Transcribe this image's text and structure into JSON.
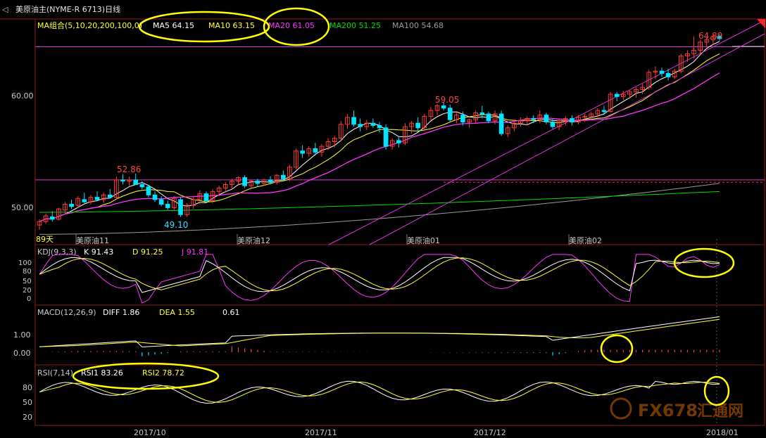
{
  "title_bar": {
    "icon": "back-arrow-icon",
    "text": "美原油主(NYME-R 6713)日线"
  },
  "colors": {
    "bg": "#000000",
    "frame": "#8b1a1a",
    "up": "#ff3b3b",
    "down": "#00e5ff",
    "ma5": "#ffffff",
    "ma10": "#ffff33",
    "ma20": "#ff33ff",
    "ma200": "#00dd00",
    "ma100": "#9a9a9a",
    "trend": "#dd33dd",
    "hline": "#dd33dd",
    "dashed": "#ff3333",
    "label_red": "#ff4444",
    "label_cyan": "#33e0ff",
    "highlight": "#ffff00",
    "axis_text": "#c8c8c8",
    "dateline": "#8b1a1a"
  },
  "main": {
    "legend": {
      "ma_group": "MA组合(5,10,20,200,100,0)",
      "ma5": "MA5 64.15",
      "ma10": "MA10 63.15",
      "ma20": "MA20 61.05",
      "ma200": "MA200 51.25",
      "ma100": "MA100 54.68"
    },
    "y_ticks": [
      "60.00",
      "50.00"
    ],
    "month_labels": [
      "美原油11",
      "美原油12",
      "美原油01",
      "美原油02"
    ],
    "annotations": {
      "high_label": "52.86",
      "low_label": "49.10",
      "mid_high_label": "59.05",
      "last_high_label": "64.89"
    },
    "days_label": "89天"
  },
  "kdj": {
    "name": "KDJ(9,3,3)",
    "k": "K  91.43",
    "d": "D  91.25",
    "j": "J  91.81",
    "y_ticks": [
      "100",
      "80",
      "50",
      "20",
      "0"
    ]
  },
  "macd": {
    "name": "MACD(12,26,9)",
    "diff": "DIFF  1.86",
    "dea": "DEA  1.55",
    "hist": "0.61",
    "y_ticks": [
      "1.00",
      "0.00"
    ]
  },
  "rsi": {
    "name": "RSI(7,14)",
    "rsi1": "RSI1  83.26",
    "rsi2": "RSI2  78.72",
    "y_ticks": [
      "80",
      "50",
      "20"
    ]
  },
  "x_axis": {
    "labels": [
      "2017/10",
      "2017/11",
      "2017/12",
      "2018/01"
    ]
  },
  "watermark": {
    "text": "FX678",
    "cn": "汇通网"
  },
  "chart_data": {
    "type": "candlestick",
    "ylim": [
      47.8,
      66.2
    ],
    "candles_ohlc": [
      [
        48.4,
        48.9,
        48.0,
        48.7
      ],
      [
        48.7,
        49.4,
        48.5,
        49.2
      ],
      [
        49.1,
        49.6,
        48.7,
        48.9
      ],
      [
        48.9,
        49.9,
        48.8,
        49.8
      ],
      [
        49.7,
        50.4,
        49.4,
        50.2
      ],
      [
        50.2,
        50.6,
        49.8,
        50.0
      ],
      [
        50.1,
        50.9,
        49.9,
        50.7
      ],
      [
        50.6,
        51.2,
        50.3,
        50.4
      ],
      [
        50.4,
        51.0,
        50.2,
        50.8
      ],
      [
        50.8,
        51.3,
        50.5,
        50.6
      ],
      [
        50.6,
        51.2,
        50.3,
        51.0
      ],
      [
        51.0,
        51.5,
        50.7,
        50.8
      ],
      [
        50.8,
        52.6,
        50.6,
        52.3
      ],
      [
        52.3,
        52.8,
        51.9,
        52.2
      ],
      [
        52.2,
        52.6,
        51.8,
        52.3
      ],
      [
        52.3,
        52.86,
        51.9,
        51.9
      ],
      [
        51.9,
        52.2,
        51.5,
        51.7
      ],
      [
        51.7,
        51.9,
        50.8,
        51.0
      ],
      [
        51.0,
        51.3,
        50.4,
        50.6
      ],
      [
        50.6,
        50.9,
        50.0,
        50.2
      ],
      [
        50.2,
        50.5,
        49.7,
        49.9
      ],
      [
        49.9,
        50.9,
        49.6,
        50.7
      ],
      [
        50.6,
        50.8,
        49.1,
        49.3
      ],
      [
        49.3,
        50.3,
        49.1,
        50.1
      ],
      [
        50.1,
        50.8,
        49.8,
        50.6
      ],
      [
        50.6,
        51.4,
        50.2,
        51.1
      ],
      [
        51.1,
        51.3,
        50.3,
        50.5
      ],
      [
        50.5,
        51.5,
        50.3,
        51.3
      ],
      [
        51.3,
        51.8,
        50.9,
        51.6
      ],
      [
        51.6,
        52.1,
        51.2,
        51.9
      ],
      [
        51.9,
        52.4,
        51.6,
        52.2
      ],
      [
        52.2,
        52.6,
        51.8,
        52.5
      ],
      [
        52.5,
        52.7,
        51.6,
        51.8
      ],
      [
        51.8,
        52.3,
        51.5,
        52.2
      ],
      [
        52.2,
        52.4,
        51.7,
        52.0
      ],
      [
        52.0,
        52.4,
        51.8,
        52.3
      ],
      [
        52.3,
        52.6,
        51.9,
        52.1
      ],
      [
        52.1,
        52.8,
        51.9,
        52.7
      ],
      [
        52.7,
        53.1,
        52.2,
        52.4
      ],
      [
        52.4,
        53.6,
        52.2,
        53.4
      ],
      [
        53.4,
        55.0,
        53.2,
        54.8
      ],
      [
        54.8,
        55.3,
        54.2,
        54.6
      ],
      [
        54.6,
        55.2,
        54.3,
        55.0
      ],
      [
        55.0,
        55.5,
        54.4,
        54.7
      ],
      [
        54.7,
        55.4,
        54.3,
        55.2
      ],
      [
        55.2,
        55.9,
        54.9,
        55.6
      ],
      [
        55.6,
        56.1,
        55.1,
        55.9
      ],
      [
        55.9,
        57.4,
        55.7,
        57.1
      ],
      [
        57.1,
        58.0,
        56.7,
        57.7
      ],
      [
        57.7,
        58.3,
        56.9,
        57.1
      ],
      [
        57.1,
        57.6,
        56.5,
        56.9
      ],
      [
        56.9,
        57.5,
        56.6,
        57.2
      ],
      [
        57.2,
        57.6,
        56.8,
        57.0
      ],
      [
        57.0,
        57.3,
        56.4,
        56.8
      ],
      [
        56.8,
        57.1,
        54.9,
        55.2
      ],
      [
        55.2,
        55.9,
        54.9,
        55.7
      ],
      [
        55.7,
        56.1,
        55.1,
        55.5
      ],
      [
        55.5,
        57.2,
        55.3,
        56.9
      ],
      [
        56.9,
        57.4,
        56.3,
        57.2
      ],
      [
        57.2,
        57.7,
        56.5,
        56.8
      ],
      [
        56.8,
        58.0,
        56.5,
        57.8
      ],
      [
        57.8,
        58.6,
        57.4,
        58.3
      ],
      [
        58.3,
        58.9,
        57.9,
        58.7
      ],
      [
        58.7,
        59.05,
        58.3,
        58.5
      ],
      [
        58.5,
        58.8,
        57.3,
        57.5
      ],
      [
        57.5,
        58.1,
        57.2,
        57.9
      ],
      [
        57.9,
        58.2,
        57.0,
        57.3
      ],
      [
        57.3,
        57.6,
        56.8,
        57.5
      ],
      [
        57.5,
        58.3,
        57.2,
        58.1
      ],
      [
        58.1,
        58.7,
        57.6,
        58.0
      ],
      [
        58.0,
        58.2,
        57.2,
        57.4
      ],
      [
        57.4,
        58.3,
        57.1,
        58.0
      ],
      [
        58.0,
        58.3,
        56.1,
        56.3
      ],
      [
        56.3,
        57.0,
        56.0,
        56.8
      ],
      [
        56.8,
        57.5,
        56.5,
        57.2
      ],
      [
        57.2,
        57.7,
        56.9,
        57.4
      ],
      [
        57.4,
        57.8,
        57.0,
        57.6
      ],
      [
        57.6,
        57.9,
        57.2,
        57.5
      ],
      [
        57.5,
        58.3,
        57.2,
        57.9
      ],
      [
        57.9,
        58.1,
        57.1,
        57.3
      ],
      [
        57.3,
        57.6,
        56.7,
        56.9
      ],
      [
        56.9,
        57.6,
        56.6,
        57.4
      ],
      [
        57.4,
        57.8,
        57.0,
        57.6
      ],
      [
        57.6,
        57.9,
        57.0,
        57.3
      ],
      [
        57.3,
        57.9,
        57.1,
        57.7
      ],
      [
        57.7,
        58.0,
        57.3,
        57.8
      ],
      [
        57.8,
        58.2,
        57.5,
        58.0
      ],
      [
        58.0,
        58.5,
        57.7,
        58.3
      ],
      [
        58.3,
        58.7,
        57.9,
        58.2
      ],
      [
        58.2,
        59.9,
        58.1,
        59.7
      ],
      [
        59.7,
        59.9,
        59.1,
        59.5
      ],
      [
        59.5,
        60.0,
        59.2,
        59.7
      ],
      [
        59.7,
        60.1,
        59.3,
        59.9
      ],
      [
        59.9,
        60.3,
        59.4,
        60.1
      ],
      [
        60.1,
        60.6,
        59.7,
        60.3
      ],
      [
        60.3,
        61.8,
        60.1,
        61.6
      ],
      [
        61.6,
        62.1,
        61.0,
        61.7
      ],
      [
        61.7,
        62.0,
        61.2,
        61.5
      ],
      [
        61.5,
        61.9,
        60.9,
        61.2
      ],
      [
        61.2,
        61.9,
        61.0,
        61.7
      ],
      [
        61.7,
        63.2,
        61.5,
        63.0
      ],
      [
        63.0,
        63.5,
        62.5,
        63.2
      ],
      [
        63.2,
        64.7,
        62.8,
        63.5
      ],
      [
        63.5,
        64.4,
        63.1,
        64.2
      ],
      [
        64.2,
        64.7,
        63.8,
        64.4
      ],
      [
        64.4,
        64.89,
        64.0,
        64.7
      ],
      [
        64.7,
        64.9,
        64.3,
        64.5
      ]
    ],
    "horizontal_lines": [
      63.8,
      52.3
    ],
    "dashed_line": 52.1,
    "kdj": {
      "k": 91.43,
      "d": 91.25,
      "j": 91.81
    },
    "macd": {
      "diff": 1.86,
      "dea": 1.55,
      "hist": 0.61
    },
    "rsi": {
      "rsi1": 83.26,
      "rsi2": 78.72
    }
  }
}
